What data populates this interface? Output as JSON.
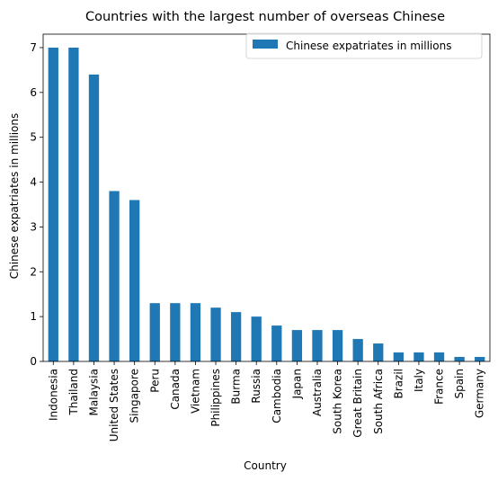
{
  "chart_data": {
    "type": "bar",
    "title": "Countries with the largest number of overseas Chinese",
    "xlabel": "Country",
    "ylabel": "Chinese expatriates in millions",
    "categories": [
      "Indonesia",
      "Thailand",
      "Malaysia",
      "United States",
      "Singapore",
      "Peru",
      "Canada",
      "Vietnam",
      "Philippines",
      "Burma",
      "Russia",
      "Cambodia",
      "Japan",
      "Australia",
      "South Korea",
      "Great Britain",
      "South Africa",
      "Brazil",
      "Italy",
      "France",
      "Spain",
      "Germany"
    ],
    "series": [
      {
        "name": "Chinese expatriates in millions",
        "values": [
          7.0,
          7.0,
          6.4,
          3.8,
          3.6,
          1.3,
          1.3,
          1.3,
          1.2,
          1.1,
          1.0,
          0.8,
          0.7,
          0.7,
          0.7,
          0.5,
          0.4,
          0.2,
          0.2,
          0.2,
          0.1,
          0.1
        ],
        "color": "#1f77b4"
      }
    ],
    "ylim": [
      0,
      7.3
    ],
    "yticks": [
      0,
      1,
      2,
      3,
      4,
      5,
      6,
      7
    ],
    "grid": false,
    "legend": "top-right"
  }
}
